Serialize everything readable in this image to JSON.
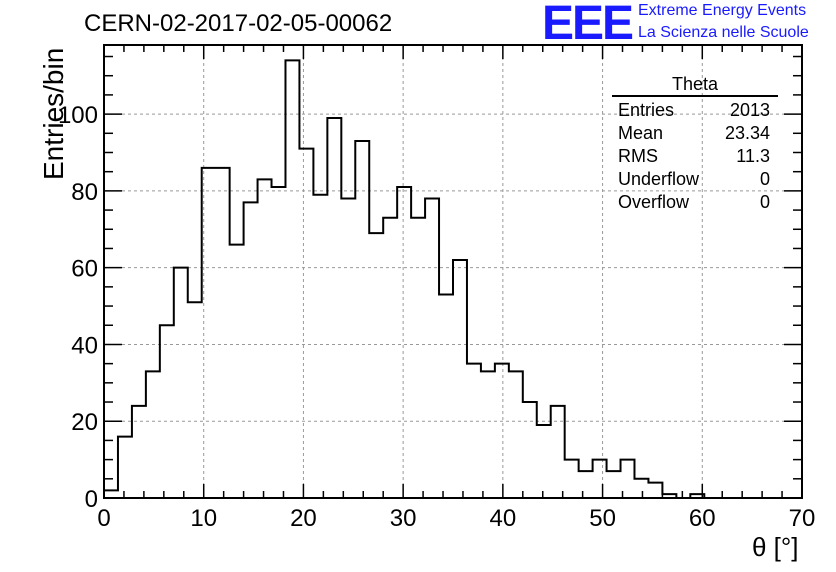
{
  "title": "CERN-02-2017-02-05-00062",
  "logo": {
    "letters": "EEE",
    "line1": "Extreme Energy Events",
    "line2": "La Scienza nelle Scuole"
  },
  "stats": {
    "name": "Theta",
    "rows": [
      {
        "label": "Entries",
        "value": "2013"
      },
      {
        "label": "Mean",
        "value": "23.34"
      },
      {
        "label": "RMS",
        "value": "11.3"
      },
      {
        "label": "Underflow",
        "value": "0"
      },
      {
        "label": "Overflow",
        "value": "0"
      }
    ]
  },
  "chart_data": {
    "type": "bar",
    "title": "CERN-02-2017-02-05-00062",
    "xlabel": "θ [°]",
    "ylabel": "Entries/bin",
    "xlim": [
      0,
      70
    ],
    "ylim": [
      0,
      118
    ],
    "bin_width": 1.4,
    "x_ticks": [
      0,
      10,
      20,
      30,
      40,
      50,
      60,
      70
    ],
    "y_ticks": [
      0,
      20,
      40,
      60,
      80,
      100
    ],
    "grid": true,
    "values": [
      2,
      16,
      24,
      33,
      45,
      60,
      51,
      86,
      86,
      66,
      77,
      83,
      81,
      114,
      91,
      79,
      99,
      78,
      93,
      69,
      73,
      81,
      73,
      78,
      53,
      62,
      35,
      33,
      35,
      33,
      25,
      19,
      24,
      10,
      7,
      10,
      7,
      10,
      5,
      4,
      1,
      0,
      1,
      0,
      0,
      0,
      0,
      0,
      0,
      0
    ]
  }
}
